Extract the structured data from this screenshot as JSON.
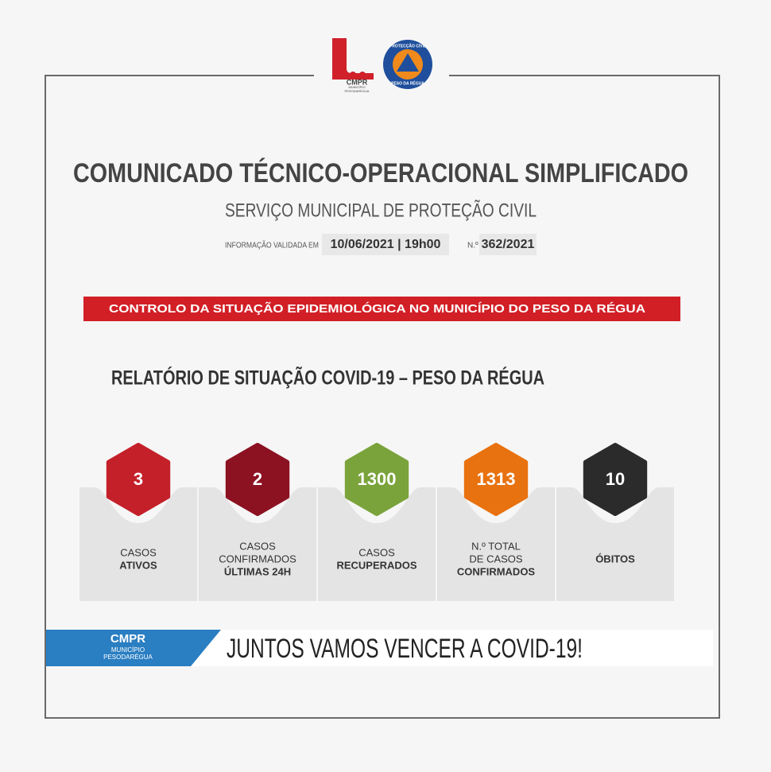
{
  "logos": {
    "municipality": {
      "brand": "CMPR",
      "line1": "MUNICÍPIO",
      "line2": "PESODARÉGUA"
    },
    "civil_protection": {
      "top": "PROTECÇÃO CIVIL",
      "bottom": "PESO DA RÉGUA"
    }
  },
  "header": {
    "title": "COMUNICADO TÉCNICO-OPERACIONAL SIMPLIFICADO",
    "subtitle": "SERVIÇO MUNICIPAL DE PROTEÇÃO CIVIL",
    "validated_label": "INFORMAÇÃO VALIDADA EM",
    "validated_value": "10/06/2021 | 19h00",
    "number_label": "N.º",
    "number_value": "362/2021"
  },
  "banner": "CONTROLO DA SITUAÇÃO EPIDEMIOLÓGICA NO MUNICÍPIO DO PESO DA RÉGUA",
  "report_title": "RELATÓRIO DE SITUAÇÃO COVID-19 – PESO DA RÉGUA",
  "stats": [
    {
      "value": 3,
      "color": "#c4202a",
      "lines": [
        "CASOS"
      ],
      "bold_lines": [
        "ATIVOS"
      ]
    },
    {
      "value": 2,
      "color": "#8c1222",
      "lines": [
        "CASOS",
        "CONFIRMADOS"
      ],
      "bold_lines": [
        "ÚLTIMAS 24H"
      ]
    },
    {
      "value": 1300,
      "color": "#7aa33b",
      "lines": [
        "CASOS"
      ],
      "bold_lines": [
        "RECUPERADOS"
      ]
    },
    {
      "value": 1313,
      "color": "#e8720f",
      "lines": [
        "N.º TOTAL",
        "DE CASOS"
      ],
      "bold_lines": [
        "CONFIRMADOS"
      ]
    },
    {
      "value": 10,
      "color": "#2b2b2b",
      "bold_lines": [
        "ÓBITOS"
      ]
    }
  ],
  "footer": {
    "brand": "CMPR",
    "line1": "MUNICÍPIO",
    "line2": "PESODARÉGUA",
    "slogan": "JUNTOS VAMOS VENCER A COVID-19!"
  }
}
